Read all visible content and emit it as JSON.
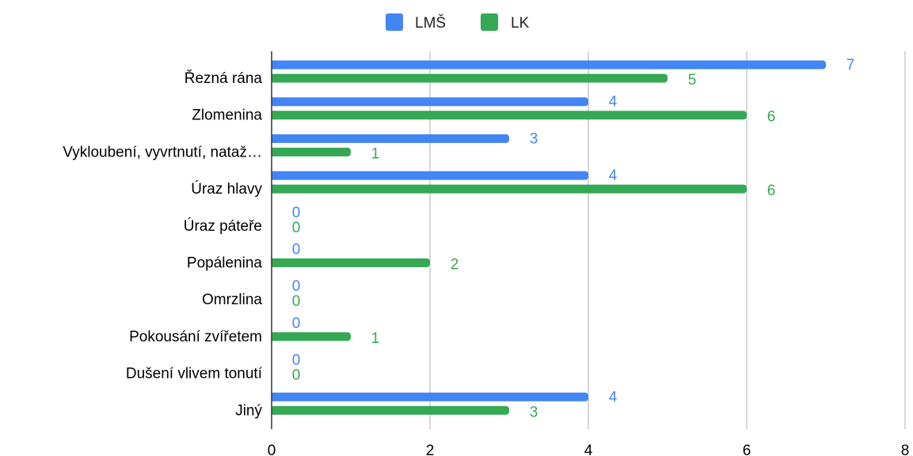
{
  "chart_data": {
    "type": "bar",
    "orientation": "horizontal",
    "categories": [
      "Řezná rána",
      "Zlomenina",
      "Vykloubení, vyvrtnutí, natažení",
      "Úraz hlavy",
      "Úraz páteře",
      "Popálenina",
      "Omrzlina",
      "Pokousání zvířetem",
      "Dušení vlivem tonutí",
      "Jiný"
    ],
    "category_labels_displayed": [
      "Řezná rána",
      "Zlomenina",
      "Vykloubení, vyvrtnutí, nataž…",
      "Úraz hlavy",
      "Úraz páteře",
      "Popálenina",
      "Omrzlina",
      "Pokousání zvířetem",
      "Dušení vlivem tonutí",
      "Jiný"
    ],
    "series": [
      {
        "name": "LMŠ",
        "color": "#4285f4",
        "values": [
          7,
          4,
          3,
          4,
          0,
          0,
          0,
          0,
          0,
          4
        ]
      },
      {
        "name": "LK",
        "color": "#34a853",
        "values": [
          5,
          6,
          1,
          6,
          0,
          2,
          0,
          1,
          0,
          3
        ]
      }
    ],
    "xlim": [
      0,
      8
    ],
    "xticks": [
      0,
      2,
      4,
      6,
      8
    ],
    "grid": true,
    "legend_position": "top",
    "data_labels": true,
    "title": "",
    "xlabel": "",
    "ylabel": ""
  }
}
